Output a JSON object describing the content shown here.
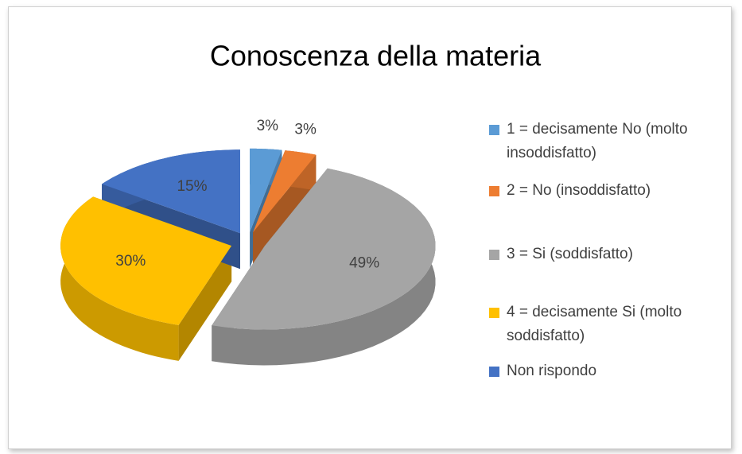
{
  "chart_data": {
    "type": "pie",
    "title": "Conoscenza della materia",
    "categories": [
      "1 = decisamente No (molto insoddisfatto)",
      "2 = No (insoddisfatto)",
      "3 = Si (soddisfatto)",
      "4 = decisamente Si (molto soddisfatto)",
      "Non rispondo"
    ],
    "values": [
      3,
      3,
      49,
      30,
      15
    ],
    "value_labels": [
      "3%",
      "3%",
      "49%",
      "30%",
      "15%"
    ],
    "colors": [
      "#5b9bd5",
      "#ed7d31",
      "#a5a5a5",
      "#ffc000",
      "#4472c4"
    ],
    "legend": "right"
  }
}
